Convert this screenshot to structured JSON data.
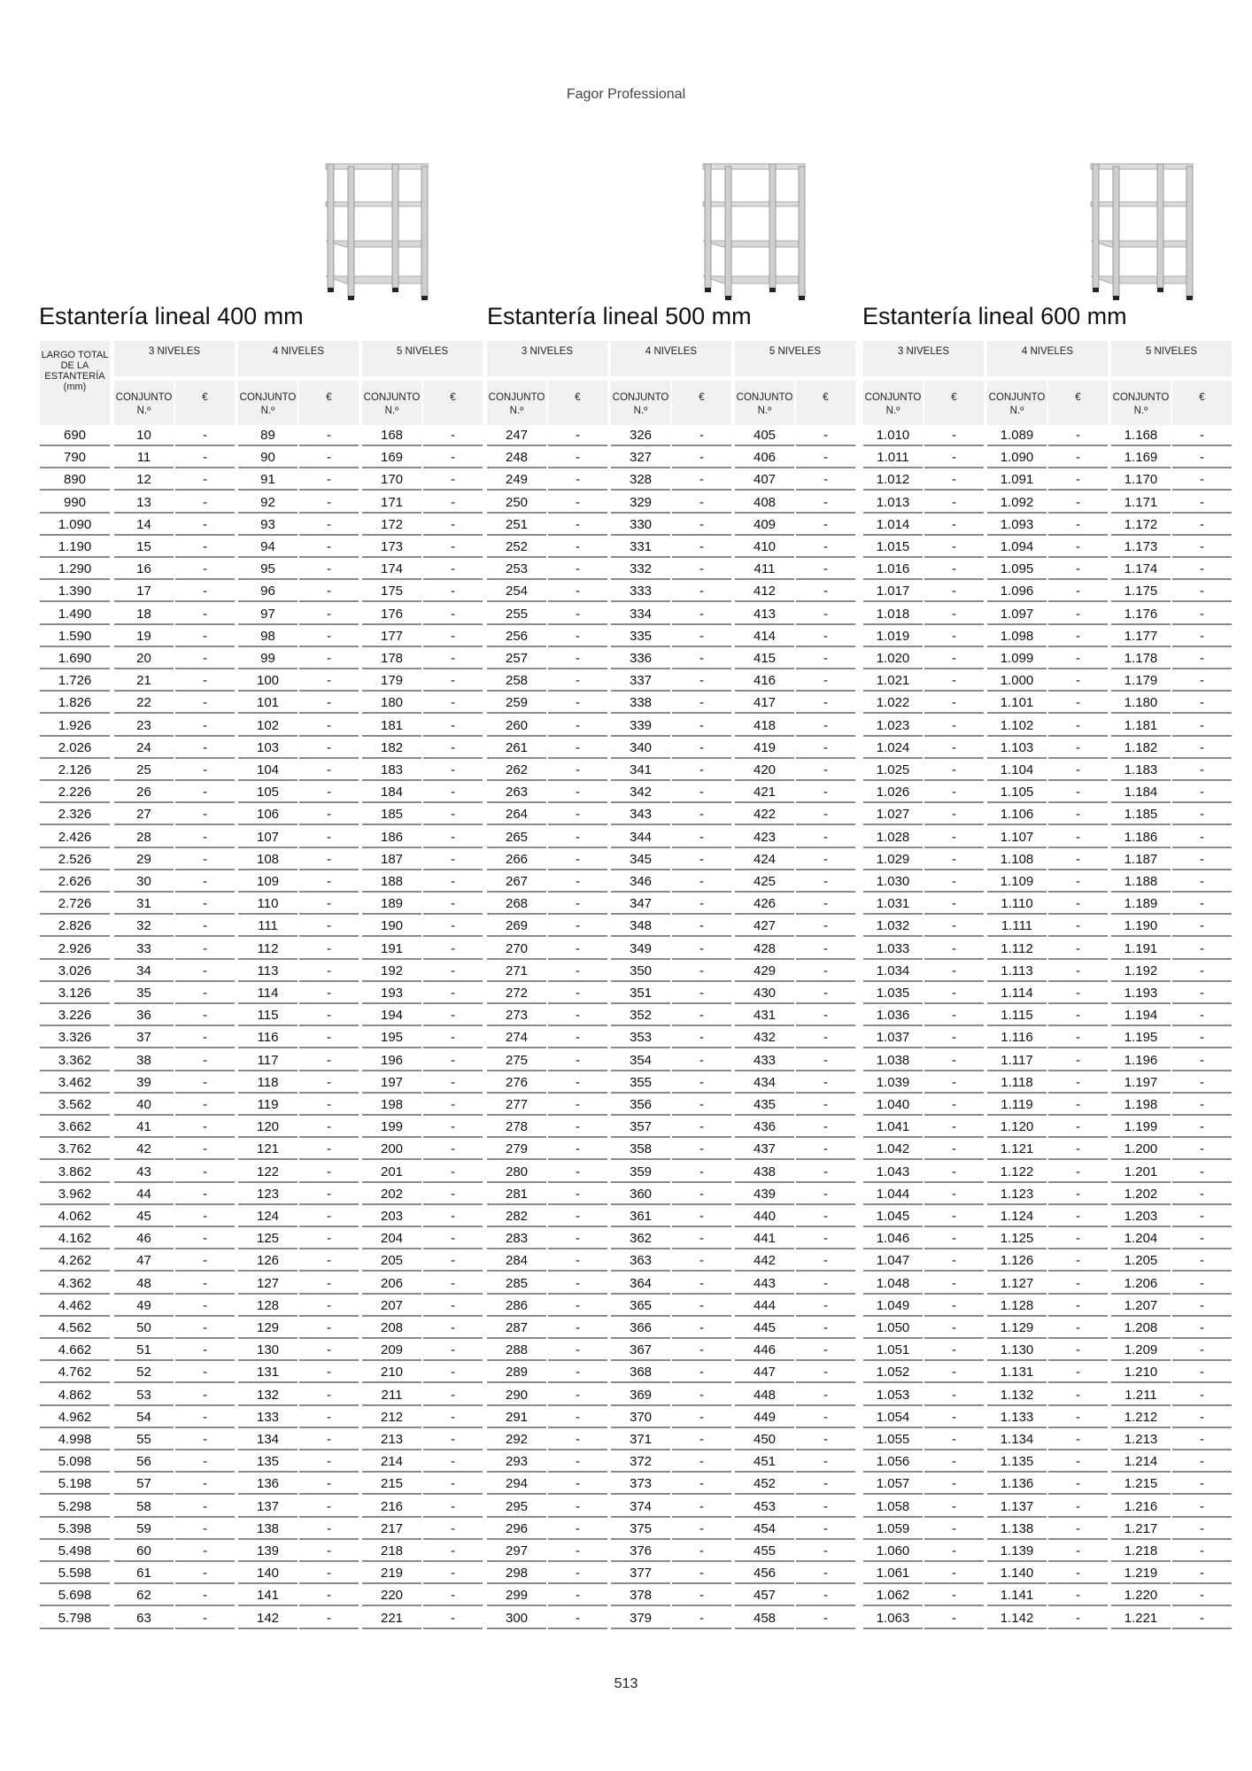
{
  "header": {
    "brand": "Fagor Professional"
  },
  "footer": {
    "page_number": "513"
  },
  "labels": {
    "largo": "LARGO TOTAL DE LA ESTANTERÍA (mm)",
    "levels": [
      "3 NIVELES",
      "4 NIVELES",
      "5 NIVELES"
    ],
    "conjunto": "CONJUNTO N.º",
    "price": "€",
    "price_value": "-"
  },
  "largo": [
    "690",
    "790",
    "890",
    "990",
    "1.090",
    "1.190",
    "1.290",
    "1.390",
    "1.490",
    "1.590",
    "1.690",
    "1.726",
    "1.826",
    "1.926",
    "2.026",
    "2.126",
    "2.226",
    "2.326",
    "2.426",
    "2.526",
    "2.626",
    "2.726",
    "2.826",
    "2.926",
    "3.026",
    "3.126",
    "3.226",
    "3.326",
    "3.362",
    "3.462",
    "3.562",
    "3.662",
    "3.762",
    "3.862",
    "3.962",
    "4.062",
    "4.162",
    "4.262",
    "4.362",
    "4.462",
    "4.562",
    "4.662",
    "4.762",
    "4.862",
    "4.962",
    "4.998",
    "5.098",
    "5.198",
    "5.298",
    "5.398",
    "5.498",
    "5.598",
    "5.698",
    "5.798"
  ],
  "tables": [
    {
      "title": "Estantería lineal 400 mm",
      "icon": "shelving-unit-image",
      "columns": [
        [
          "10",
          "11",
          "12",
          "13",
          "14",
          "15",
          "16",
          "17",
          "18",
          "19",
          "20",
          "21",
          "22",
          "23",
          "24",
          "25",
          "26",
          "27",
          "28",
          "29",
          "30",
          "31",
          "32",
          "33",
          "34",
          "35",
          "36",
          "37",
          "38",
          "39",
          "40",
          "41",
          "42",
          "43",
          "44",
          "45",
          "46",
          "47",
          "48",
          "49",
          "50",
          "51",
          "52",
          "53",
          "54",
          "55",
          "56",
          "57",
          "58",
          "59",
          "60",
          "61",
          "62",
          "63"
        ],
        [
          "89",
          "90",
          "91",
          "92",
          "93",
          "94",
          "95",
          "96",
          "97",
          "98",
          "99",
          "100",
          "101",
          "102",
          "103",
          "104",
          "105",
          "106",
          "107",
          "108",
          "109",
          "110",
          "111",
          "112",
          "113",
          "114",
          "115",
          "116",
          "117",
          "118",
          "119",
          "120",
          "121",
          "122",
          "123",
          "124",
          "125",
          "126",
          "127",
          "128",
          "129",
          "130",
          "131",
          "132",
          "133",
          "134",
          "135",
          "136",
          "137",
          "138",
          "139",
          "140",
          "141",
          "142"
        ],
        [
          "168",
          "169",
          "170",
          "171",
          "172",
          "173",
          "174",
          "175",
          "176",
          "177",
          "178",
          "179",
          "180",
          "181",
          "182",
          "183",
          "184",
          "185",
          "186",
          "187",
          "188",
          "189",
          "190",
          "191",
          "192",
          "193",
          "194",
          "195",
          "196",
          "197",
          "198",
          "199",
          "200",
          "201",
          "202",
          "203",
          "204",
          "205",
          "206",
          "207",
          "208",
          "209",
          "210",
          "211",
          "212",
          "213",
          "214",
          "215",
          "216",
          "217",
          "218",
          "219",
          "220",
          "221"
        ]
      ]
    },
    {
      "title": "Estantería lineal 500 mm",
      "icon": "shelving-unit-image",
      "columns": [
        [
          "247",
          "248",
          "249",
          "250",
          "251",
          "252",
          "253",
          "254",
          "255",
          "256",
          "257",
          "258",
          "259",
          "260",
          "261",
          "262",
          "263",
          "264",
          "265",
          "266",
          "267",
          "268",
          "269",
          "270",
          "271",
          "272",
          "273",
          "274",
          "275",
          "276",
          "277",
          "278",
          "279",
          "280",
          "281",
          "282",
          "283",
          "284",
          "285",
          "286",
          "287",
          "288",
          "289",
          "290",
          "291",
          "292",
          "293",
          "294",
          "295",
          "296",
          "297",
          "298",
          "299",
          "300"
        ],
        [
          "326",
          "327",
          "328",
          "329",
          "330",
          "331",
          "332",
          "333",
          "334",
          "335",
          "336",
          "337",
          "338",
          "339",
          "340",
          "341",
          "342",
          "343",
          "344",
          "345",
          "346",
          "347",
          "348",
          "349",
          "350",
          "351",
          "352",
          "353",
          "354",
          "355",
          "356",
          "357",
          "358",
          "359",
          "360",
          "361",
          "362",
          "363",
          "364",
          "365",
          "366",
          "367",
          "368",
          "369",
          "370",
          "371",
          "372",
          "373",
          "374",
          "375",
          "376",
          "377",
          "378",
          "379"
        ],
        [
          "405",
          "406",
          "407",
          "408",
          "409",
          "410",
          "411",
          "412",
          "413",
          "414",
          "415",
          "416",
          "417",
          "418",
          "419",
          "420",
          "421",
          "422",
          "423",
          "424",
          "425",
          "426",
          "427",
          "428",
          "429",
          "430",
          "431",
          "432",
          "433",
          "434",
          "435",
          "436",
          "437",
          "438",
          "439",
          "440",
          "441",
          "442",
          "443",
          "444",
          "445",
          "446",
          "447",
          "448",
          "449",
          "450",
          "451",
          "452",
          "453",
          "454",
          "455",
          "456",
          "457",
          "458"
        ]
      ]
    },
    {
      "title": "Estantería lineal 600 mm",
      "icon": "shelving-unit-image",
      "columns": [
        [
          "1.010",
          "1.011",
          "1.012",
          "1.013",
          "1.014",
          "1.015",
          "1.016",
          "1.017",
          "1.018",
          "1.019",
          "1.020",
          "1.021",
          "1.022",
          "1.023",
          "1.024",
          "1.025",
          "1.026",
          "1.027",
          "1.028",
          "1.029",
          "1.030",
          "1.031",
          "1.032",
          "1.033",
          "1.034",
          "1.035",
          "1.036",
          "1.037",
          "1.038",
          "1.039",
          "1.040",
          "1.041",
          "1.042",
          "1.043",
          "1.044",
          "1.045",
          "1.046",
          "1.047",
          "1.048",
          "1.049",
          "1.050",
          "1.051",
          "1.052",
          "1.053",
          "1.054",
          "1.055",
          "1.056",
          "1.057",
          "1.058",
          "1.059",
          "1.060",
          "1.061",
          "1.062",
          "1.063"
        ],
        [
          "1.089",
          "1.090",
          "1.091",
          "1.092",
          "1.093",
          "1.094",
          "1.095",
          "1.096",
          "1.097",
          "1.098",
          "1.099",
          "1.000",
          "1.101",
          "1.102",
          "1.103",
          "1.104",
          "1.105",
          "1.106",
          "1.107",
          "1.108",
          "1.109",
          "1.110",
          "1.111",
          "1.112",
          "1.113",
          "1.114",
          "1.115",
          "1.116",
          "1.117",
          "1.118",
          "1.119",
          "1.120",
          "1.121",
          "1.122",
          "1.123",
          "1.124",
          "1.125",
          "1.126",
          "1.127",
          "1.128",
          "1.129",
          "1.130",
          "1.131",
          "1.132",
          "1.133",
          "1.134",
          "1.135",
          "1.136",
          "1.137",
          "1.138",
          "1.139",
          "1.140",
          "1.141",
          "1.142"
        ],
        [
          "1.168",
          "1.169",
          "1.170",
          "1.171",
          "1.172",
          "1.173",
          "1.174",
          "1.175",
          "1.176",
          "1.177",
          "1.178",
          "1.179",
          "1.180",
          "1.181",
          "1.182",
          "1.183",
          "1.184",
          "1.185",
          "1.186",
          "1.187",
          "1.188",
          "1.189",
          "1.190",
          "1.191",
          "1.192",
          "1.193",
          "1.194",
          "1.195",
          "1.196",
          "1.197",
          "1.198",
          "1.199",
          "1.200",
          "1.201",
          "1.202",
          "1.203",
          "1.204",
          "1.205",
          "1.206",
          "1.207",
          "1.208",
          "1.209",
          "1.210",
          "1.211",
          "1.212",
          "1.213",
          "1.214",
          "1.215",
          "1.216",
          "1.217",
          "1.218",
          "1.219",
          "1.220",
          "1.221"
        ]
      ]
    }
  ]
}
